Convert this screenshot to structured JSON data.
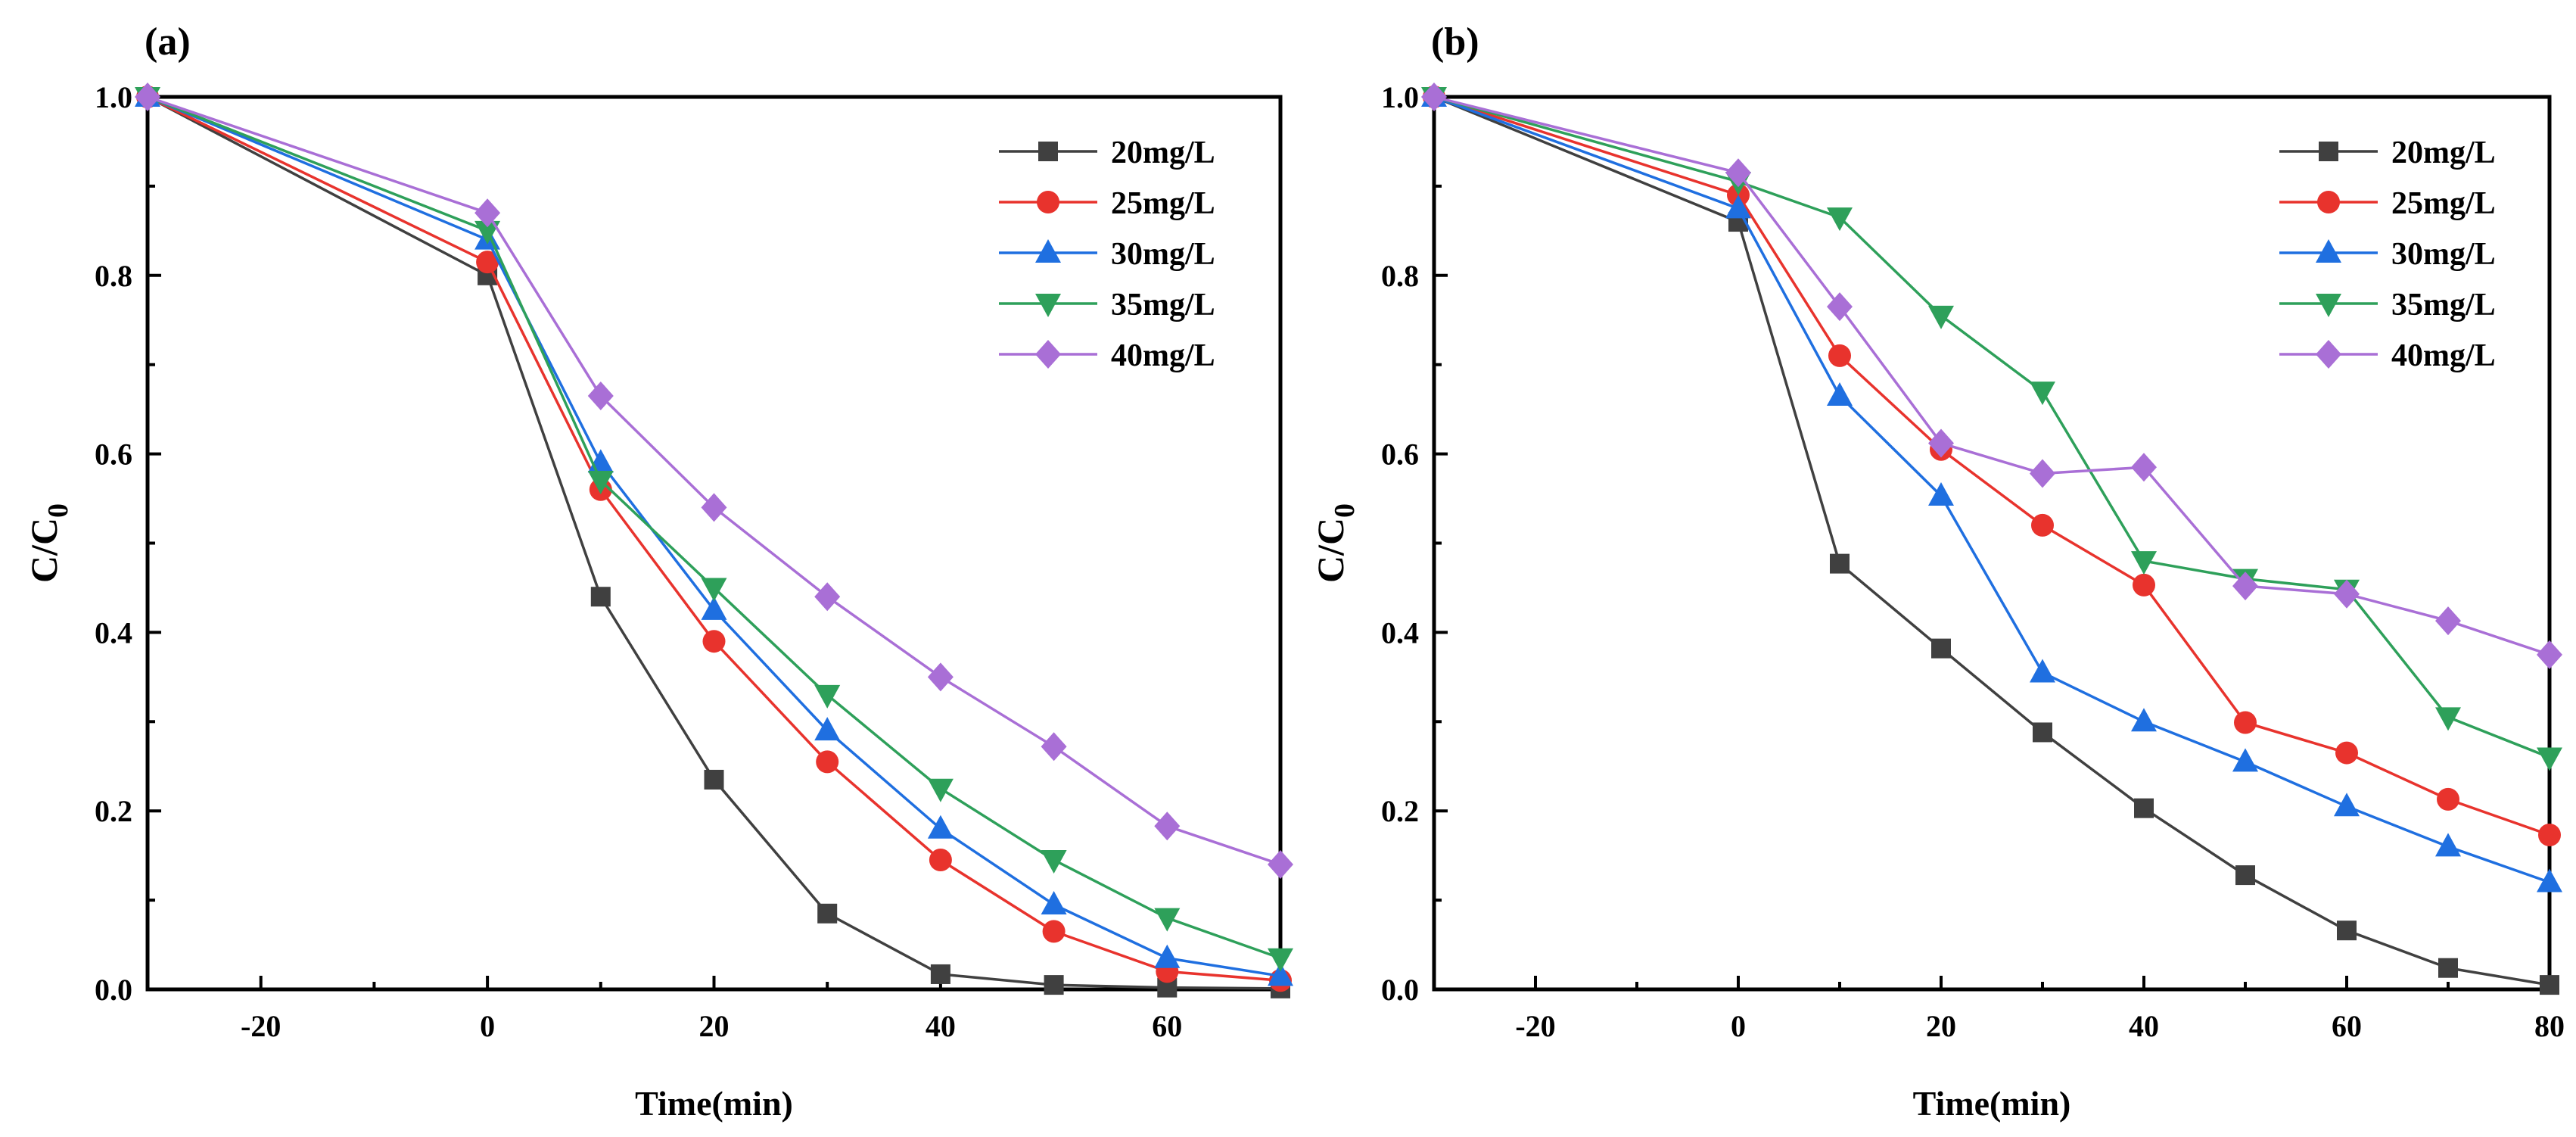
{
  "colors": {
    "20mg/L": "#404040",
    "25mg/L": "#e8332d",
    "30mg/L": "#1f6fe0",
    "35mg/L": "#2ea05a",
    "40mg/L": "#a96fd6"
  },
  "chart_data": [
    {
      "panel_label": "(a)",
      "type": "line",
      "xlabel": "Time(min)",
      "ylabel_main": "C/C",
      "ylabel_sub": "0",
      "xlim": [
        -30,
        70
      ],
      "ylim": [
        0,
        1.0
      ],
      "xticks": [
        -20,
        0,
        20,
        40,
        60
      ],
      "xtick_labels": [
        "-20",
        "0",
        "20",
        "40",
        "60"
      ],
      "yticks": [
        0.0,
        0.2,
        0.4,
        0.6,
        0.8,
        1.0
      ],
      "ytick_labels": [
        "0.0",
        "0.2",
        "0.4",
        "0.6",
        "0.8",
        "1.0"
      ],
      "x": [
        -30,
        0,
        10,
        20,
        30,
        40,
        50,
        60,
        70
      ],
      "legend_position": "top-right",
      "series": [
        {
          "name": "20mg/L",
          "marker": "square",
          "values": [
            1.0,
            0.8,
            0.44,
            0.235,
            0.085,
            0.017,
            0.005,
            0.002,
            0.001
          ]
        },
        {
          "name": "25mg/L",
          "marker": "circle",
          "values": [
            1.0,
            0.815,
            0.56,
            0.39,
            0.255,
            0.145,
            0.065,
            0.02,
            0.01
          ]
        },
        {
          "name": "30mg/L",
          "marker": "triangle-up",
          "values": [
            1.0,
            0.84,
            0.59,
            0.425,
            0.29,
            0.18,
            0.095,
            0.035,
            0.015
          ]
        },
        {
          "name": "35mg/L",
          "marker": "triangle-down",
          "values": [
            1.0,
            0.85,
            0.57,
            0.45,
            0.33,
            0.225,
            0.145,
            0.08,
            0.035
          ]
        },
        {
          "name": "40mg/L",
          "marker": "diamond",
          "values": [
            1.0,
            0.87,
            0.665,
            0.54,
            0.44,
            0.35,
            0.272,
            0.183,
            0.14
          ]
        }
      ]
    },
    {
      "panel_label": "(b)",
      "type": "line",
      "xlabel": "Time(min)",
      "ylabel_main": "C/C",
      "ylabel_sub": "0",
      "xlim": [
        -30,
        80
      ],
      "ylim": [
        0,
        1.0
      ],
      "xticks": [
        -20,
        0,
        20,
        40,
        60,
        80
      ],
      "xtick_labels": [
        "-20",
        "0",
        "20",
        "40",
        "60",
        "80"
      ],
      "yticks": [
        0.0,
        0.2,
        0.4,
        0.6,
        0.8,
        1.0
      ],
      "ytick_labels": [
        "0.0",
        "0.2",
        "0.4",
        "0.6",
        "0.8",
        "1.0"
      ],
      "x": [
        -30,
        0,
        10,
        20,
        30,
        40,
        50,
        60,
        70,
        80
      ],
      "legend_position": "top-right",
      "series": [
        {
          "name": "20mg/L",
          "marker": "square",
          "values": [
            1.0,
            0.86,
            0.477,
            0.382,
            0.288,
            0.203,
            0.128,
            0.066,
            0.024,
            0.005
          ]
        },
        {
          "name": "25mg/L",
          "marker": "circle",
          "values": [
            1.0,
            0.89,
            0.71,
            0.605,
            0.52,
            0.453,
            0.299,
            0.265,
            0.213,
            0.173
          ]
        },
        {
          "name": "30mg/L",
          "marker": "triangle-up",
          "values": [
            1.0,
            0.875,
            0.665,
            0.553,
            0.355,
            0.3,
            0.255,
            0.205,
            0.16,
            0.12
          ]
        },
        {
          "name": "35mg/L",
          "marker": "triangle-down",
          "values": [
            1.0,
            0.905,
            0.865,
            0.755,
            0.67,
            0.48,
            0.46,
            0.448,
            0.305,
            0.26
          ]
        },
        {
          "name": "40mg/L",
          "marker": "diamond",
          "values": [
            1.0,
            0.915,
            0.765,
            0.612,
            0.578,
            0.585,
            0.452,
            0.443,
            0.413,
            0.375
          ]
        }
      ]
    }
  ]
}
